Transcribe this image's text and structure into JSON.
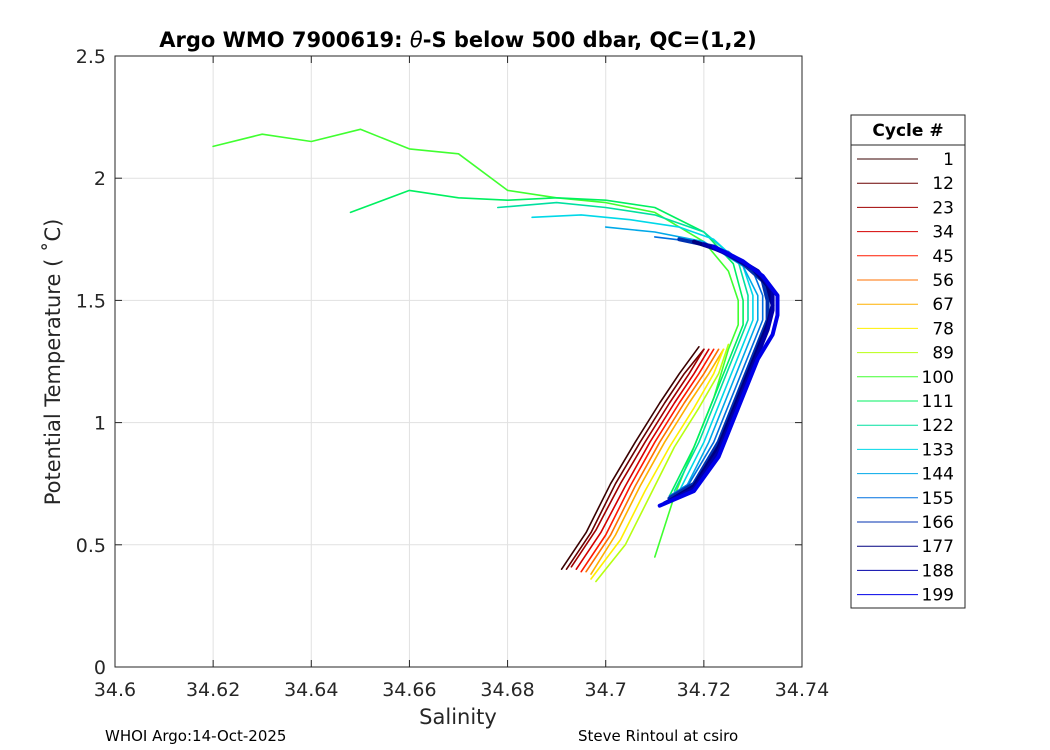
{
  "chart_data": {
    "type": "line",
    "title_prefix": "Argo WMO 7900619: ",
    "title_symbol": "θ",
    "title_suffix": "-S below 500 dbar,  QC=(1,2)",
    "xlabel": "Salinity",
    "ylabel": "Potential Temperature ( ˚C)",
    "xlim": [
      34.6,
      34.74
    ],
    "ylim": [
      0,
      2.5
    ],
    "xticks": [
      "34.6",
      "34.62",
      "34.64",
      "34.66",
      "34.68",
      "34.7",
      "34.72",
      "34.74"
    ],
    "yticks": [
      "0",
      "0.5",
      "1",
      "1.5",
      "2",
      "2.5"
    ],
    "grid": true,
    "legend": {
      "title": "Cycle #",
      "placement": "outside-right",
      "entries": [
        {
          "label": "1",
          "color": "#3a0000"
        },
        {
          "label": "12",
          "color": "#6a0000"
        },
        {
          "label": "23",
          "color": "#a00000"
        },
        {
          "label": "34",
          "color": "#d40000"
        },
        {
          "label": "45",
          "color": "#ff1a00"
        },
        {
          "label": "56",
          "color": "#ff7000"
        },
        {
          "label": "67",
          "color": "#ffb000"
        },
        {
          "label": "78",
          "color": "#fff000"
        },
        {
          "label": "89",
          "color": "#b8ff10"
        },
        {
          "label": "100",
          "color": "#40ff30"
        },
        {
          "label": "111",
          "color": "#00f060"
        },
        {
          "label": "122",
          "color": "#00e0a0"
        },
        {
          "label": "133",
          "color": "#00d8e8"
        },
        {
          "label": "144",
          "color": "#00a8e8"
        },
        {
          "label": "155",
          "color": "#0070e0"
        },
        {
          "label": "166",
          "color": "#0030b0"
        },
        {
          "label": "177",
          "color": "#000080"
        },
        {
          "label": "188",
          "color": "#0000a8"
        },
        {
          "label": "199",
          "color": "#0000e8"
        }
      ]
    },
    "series": [
      {
        "name": "1",
        "color": "#3a0000",
        "x": [
          34.691,
          34.696,
          34.701,
          34.706,
          34.711,
          34.715,
          34.719
        ],
        "y": [
          0.4,
          0.55,
          0.75,
          0.92,
          1.08,
          1.2,
          1.31
        ]
      },
      {
        "name": "12",
        "color": "#6a0000",
        "x": [
          34.692,
          34.697,
          34.702,
          34.707,
          34.712,
          34.716,
          34.72
        ],
        "y": [
          0.4,
          0.55,
          0.75,
          0.92,
          1.08,
          1.2,
          1.3
        ]
      },
      {
        "name": "23",
        "color": "#a00000",
        "x": [
          34.693,
          34.698,
          34.703,
          34.708,
          34.713,
          34.717,
          34.72
        ],
        "y": [
          0.41,
          0.56,
          0.75,
          0.92,
          1.08,
          1.2,
          1.3
        ]
      },
      {
        "name": "34",
        "color": "#d40000",
        "x": [
          34.694,
          34.699,
          34.704,
          34.709,
          34.714,
          34.718,
          34.721
        ],
        "y": [
          0.4,
          0.55,
          0.74,
          0.92,
          1.08,
          1.2,
          1.3
        ]
      },
      {
        "name": "45",
        "color": "#ff1a00",
        "x": [
          34.695,
          34.7,
          34.705,
          34.71,
          34.715,
          34.719,
          34.722
        ],
        "y": [
          0.39,
          0.54,
          0.74,
          0.92,
          1.08,
          1.2,
          1.3
        ]
      },
      {
        "name": "56",
        "color": "#ff7000",
        "x": [
          34.696,
          34.701,
          34.706,
          34.711,
          34.716,
          34.72,
          34.723
        ],
        "y": [
          0.39,
          0.54,
          0.74,
          0.92,
          1.08,
          1.2,
          1.3
        ]
      },
      {
        "name": "67",
        "color": "#ffb000",
        "x": [
          34.697,
          34.702,
          34.707,
          34.712,
          34.717,
          34.721,
          34.724
        ],
        "y": [
          0.38,
          0.54,
          0.74,
          0.92,
          1.08,
          1.2,
          1.3
        ]
      },
      {
        "name": "78",
        "color": "#fff000",
        "x": [
          34.697,
          34.703,
          34.708,
          34.713,
          34.718,
          34.722,
          34.724
        ],
        "y": [
          0.36,
          0.52,
          0.72,
          0.9,
          1.06,
          1.2,
          1.3
        ]
      },
      {
        "name": "89",
        "color": "#b8ff10",
        "x": [
          34.698,
          34.704,
          34.709,
          34.714,
          34.719,
          34.723,
          34.725
        ],
        "y": [
          0.35,
          0.5,
          0.7,
          0.9,
          1.06,
          1.2,
          1.32
        ]
      },
      {
        "name": "100",
        "color": "#40ff30",
        "x": [
          34.62,
          34.63,
          34.64,
          34.65,
          34.66,
          34.67,
          34.68,
          34.69,
          34.7,
          34.71,
          34.72,
          34.725,
          34.727,
          34.727,
          34.725,
          34.722,
          34.718,
          34.714,
          34.71
        ],
        "y": [
          2.13,
          2.18,
          2.15,
          2.2,
          2.12,
          2.1,
          1.95,
          1.92,
          1.9,
          1.86,
          1.74,
          1.62,
          1.5,
          1.4,
          1.3,
          1.1,
          0.9,
          0.7,
          0.45
        ]
      },
      {
        "name": "111",
        "color": "#00f060",
        "x": [
          34.648,
          34.66,
          34.67,
          34.68,
          34.69,
          34.7,
          34.71,
          34.72,
          34.726,
          34.728,
          34.728,
          34.726,
          34.722,
          34.718,
          34.713
        ],
        "y": [
          1.86,
          1.95,
          1.92,
          1.91,
          1.92,
          1.91,
          1.88,
          1.78,
          1.65,
          1.5,
          1.4,
          1.3,
          1.1,
          0.9,
          0.7
        ]
      },
      {
        "name": "122",
        "color": "#00e0a0",
        "x": [
          34.678,
          34.69,
          34.7,
          34.71,
          34.72,
          34.727,
          34.729,
          34.729,
          34.727,
          34.723,
          34.719,
          34.714
        ],
        "y": [
          1.88,
          1.9,
          1.88,
          1.85,
          1.78,
          1.66,
          1.52,
          1.42,
          1.32,
          1.12,
          0.92,
          0.72
        ]
      },
      {
        "name": "133",
        "color": "#00d8e8",
        "x": [
          34.685,
          34.695,
          34.705,
          34.715,
          34.722,
          34.728,
          34.73,
          34.73,
          34.728,
          34.724,
          34.72,
          34.715
        ],
        "y": [
          1.84,
          1.85,
          1.83,
          1.8,
          1.75,
          1.64,
          1.52,
          1.42,
          1.32,
          1.12,
          0.92,
          0.72
        ]
      },
      {
        "name": "144",
        "color": "#00a8e8",
        "x": [
          34.7,
          34.71,
          34.72,
          34.728,
          34.731,
          34.731,
          34.729,
          34.725,
          34.721,
          34.716
        ],
        "y": [
          1.8,
          1.78,
          1.74,
          1.64,
          1.52,
          1.42,
          1.32,
          1.12,
          0.92,
          0.72
        ]
      },
      {
        "name": "155",
        "color": "#0070e0",
        "x": [
          34.71,
          34.718,
          34.725,
          34.73,
          34.732,
          34.732,
          34.73,
          34.726,
          34.722,
          34.717,
          34.713
        ],
        "y": [
          1.76,
          1.74,
          1.7,
          1.62,
          1.52,
          1.42,
          1.32,
          1.12,
          0.92,
          0.75,
          0.7
        ]
      },
      {
        "name": "166",
        "color": "#0030b0",
        "x": [
          34.715,
          34.722,
          34.728,
          34.732,
          34.733,
          34.733,
          34.731,
          34.727,
          34.723,
          34.718,
          34.713
        ],
        "y": [
          1.75,
          1.72,
          1.65,
          1.58,
          1.5,
          1.42,
          1.32,
          1.12,
          0.92,
          0.75,
          0.69
        ]
      },
      {
        "name": "177",
        "color": "#000080",
        "x": [
          34.718,
          34.724,
          34.73,
          34.733,
          34.734,
          34.733,
          34.731,
          34.727,
          34.723,
          34.718,
          34.713
        ],
        "y": [
          1.74,
          1.7,
          1.63,
          1.56,
          1.48,
          1.4,
          1.3,
          1.1,
          0.9,
          0.74,
          0.68
        ]
      },
      {
        "name": "188",
        "color": "#0000a8",
        "x": [
          34.72,
          34.726,
          34.731,
          34.734,
          34.734,
          34.733,
          34.731,
          34.727,
          34.723,
          34.718,
          34.712
        ],
        "y": [
          1.73,
          1.68,
          1.62,
          1.54,
          1.46,
          1.38,
          1.28,
          1.08,
          0.88,
          0.73,
          0.67
        ]
      },
      {
        "name": "199",
        "color": "#0000e8",
        "x": [
          34.722,
          34.728,
          34.732,
          34.735,
          34.735,
          34.734,
          34.731,
          34.727,
          34.723,
          34.718,
          34.711
        ],
        "y": [
          1.72,
          1.66,
          1.6,
          1.52,
          1.44,
          1.36,
          1.26,
          1.06,
          0.86,
          0.72,
          0.66
        ]
      }
    ]
  },
  "footer": {
    "left": "WHOI Argo:14-Oct-2025",
    "right": "Steve Rintoul at csiro"
  }
}
